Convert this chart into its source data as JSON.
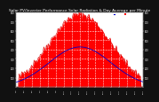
{
  "title": "Solar PV/Inverter Performance Solar Radiation & Day Average per Minute",
  "title_fontsize": 3.2,
  "bg_color": "#111111",
  "plot_bg_color": "#ffffff",
  "fill_color": "#ff0000",
  "line_color": "#dd0000",
  "avg_line_color": "#0000cc",
  "legend_labels": [
    "Day Avg",
    "Radiation - min"
  ],
  "legend_colors": [
    "#0000cc",
    "#ff0000"
  ],
  "ylim": [
    0,
    800
  ],
  "yticks_left": [
    100,
    200,
    300,
    400,
    500,
    600,
    700,
    800
  ],
  "yticks_right": [
    100,
    200,
    300,
    400,
    500,
    600,
    700,
    800
  ],
  "grid_color": "#ffffff",
  "num_points": 144,
  "peak_idx": 72,
  "peak_value": 780,
  "sigma": 35,
  "noise_scale": 20,
  "time_labels": [
    "4:0",
    "5:0",
    "6:0",
    "7:0",
    "8:0",
    "9:0",
    "10:0",
    "11:0",
    "12:0",
    "13:0",
    "14:0",
    "15:0",
    "16:0",
    "17:0",
    "18:0",
    "19:0",
    "20:0"
  ],
  "num_xticks": 17
}
